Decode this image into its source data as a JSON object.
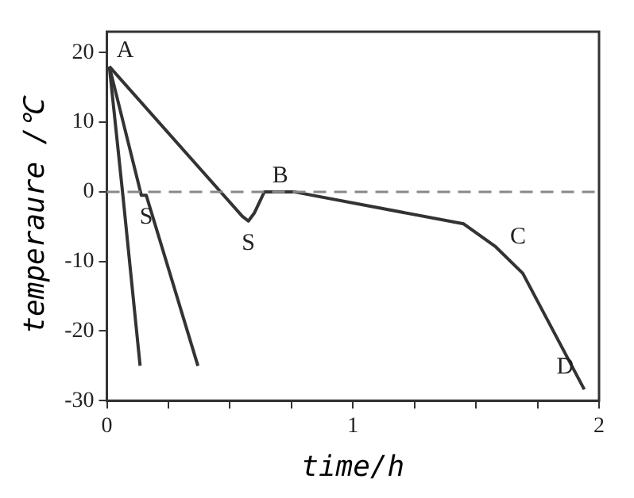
{
  "chart_data": {
    "type": "line",
    "xlabel": "time/h",
    "ylabel": "temperaure /℃",
    "xlim": [
      0,
      2
    ],
    "xticks": [
      0,
      {
        "value": 0.25,
        "label": null
      },
      {
        "value": 0.5,
        "label": null
      },
      {
        "value": 0.75,
        "label": null
      },
      1,
      {
        "value": 1.25,
        "label": null
      },
      {
        "value": 1.5,
        "label": null
      },
      {
        "value": 1.75,
        "label": null
      },
      2
    ],
    "ylim": [
      -30,
      23
    ],
    "yticks": [
      -30,
      -20,
      -10,
      0,
      10,
      20
    ],
    "marker": "none",
    "line_style": "solid",
    "series": [
      {
        "color": "#333333",
        "x": [
          0.01,
          0.065,
          0.135
        ],
        "values": [
          18,
          -0.5,
          -25
        ]
      },
      {
        "color": "#333333",
        "x": [
          0.01,
          0.14,
          0.16,
          0.37
        ],
        "values": [
          18,
          -0.5,
          -0.5,
          -25
        ]
      },
      {
        "color": "#333333",
        "x": [
          0.01,
          0.55,
          0.575,
          0.6,
          0.64,
          0.76,
          1.45,
          1.58,
          1.69,
          1.94
        ],
        "values": [
          18,
          -3.5,
          -4.2,
          -3,
          0,
          0,
          -4.6,
          -7.9,
          -11.7,
          -28.4
        ]
      }
    ],
    "ref_lines": [
      {
        "axis": "y",
        "value": 0,
        "color": "#888888",
        "line_style": "dashed"
      }
    ],
    "annotations": [
      {
        "text": "A",
        "x": 0.01,
        "y": 18
      },
      {
        "text": "S",
        "x": 0.16,
        "y": -0.5
      },
      {
        "text": "S",
        "x": 0.575,
        "y": -4.2
      },
      {
        "text": "B",
        "x": 0.64,
        "y": 0
      },
      {
        "text": "C",
        "x": 1.58,
        "y": -7.9
      },
      {
        "text": "D",
        "x": 1.94,
        "y": -28.4
      }
    ]
  }
}
